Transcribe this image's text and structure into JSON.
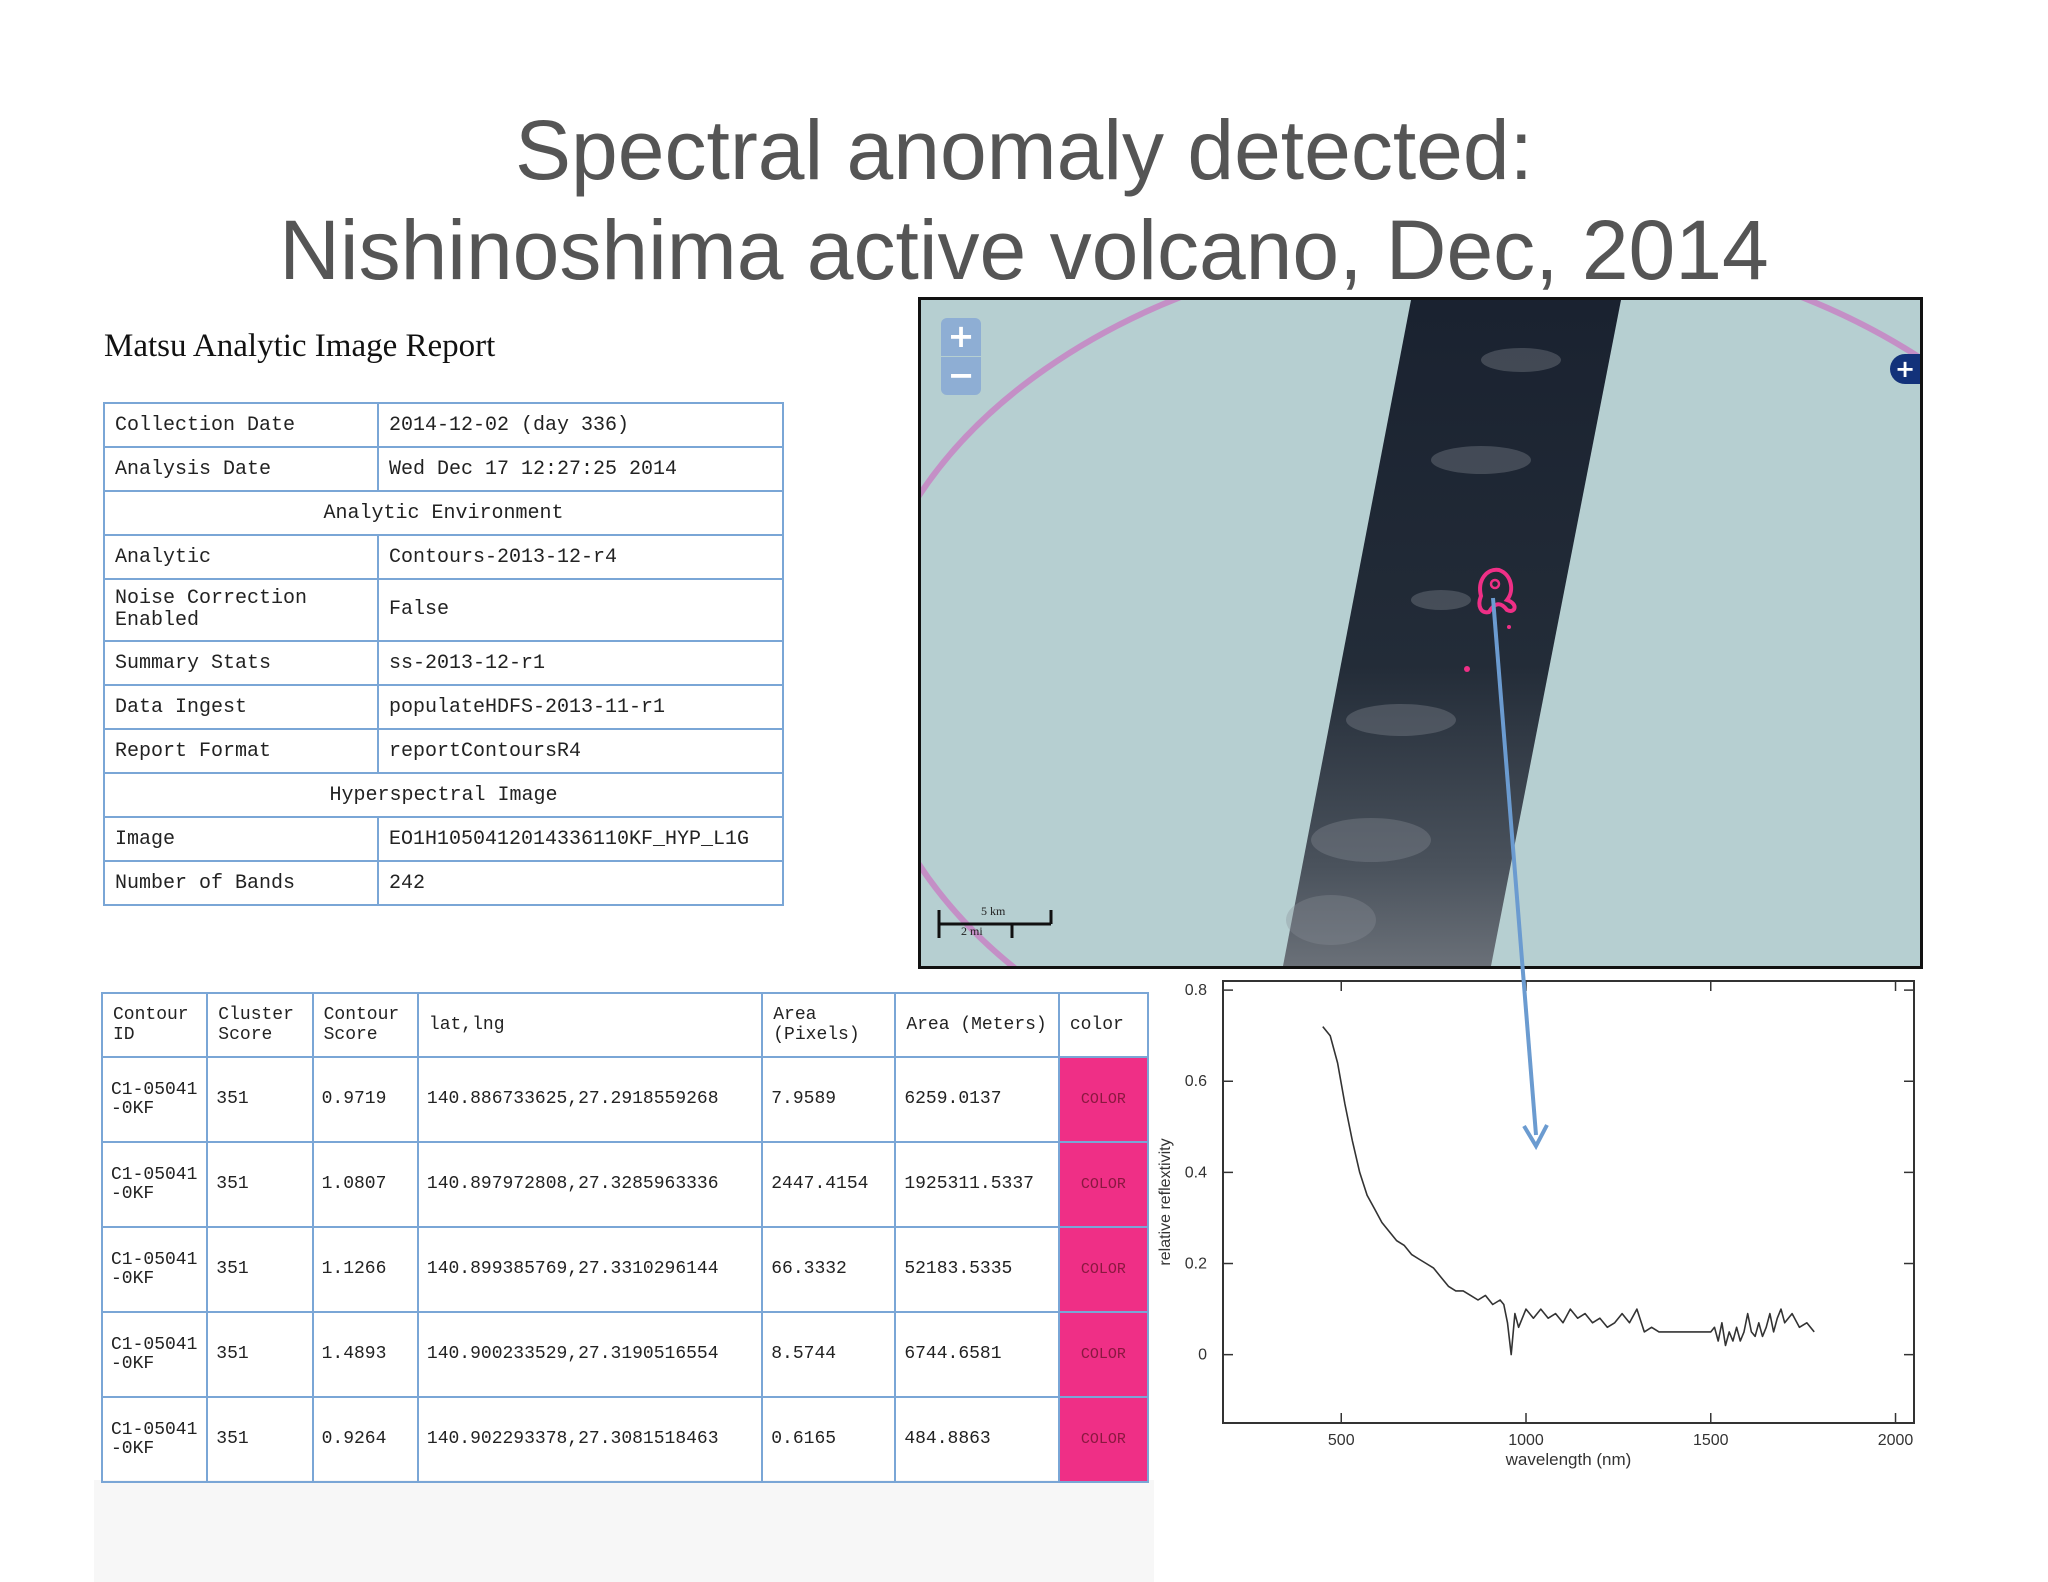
{
  "slide": {
    "title_line1": "Spectral anomaly detected:",
    "title_line2": "Nishinoshima active volcano, Dec, 2014"
  },
  "report": {
    "heading": "Matsu Analytic Image Report",
    "rows": {
      "collection_date": {
        "key": "Collection Date",
        "value": "2014-12-02 (day 336)"
      },
      "analysis_date": {
        "key": "Analysis Date",
        "value": "Wed Dec 17 12:27:25 2014"
      },
      "analytic_environment": "Analytic Environment",
      "analytic": {
        "key": "Analytic",
        "value": "Contours-2013-12-r4"
      },
      "noise_correction": {
        "key": "Noise Correction Enabled",
        "value": "False"
      },
      "summary_stats": {
        "key": "Summary Stats",
        "value": "ss-2013-12-r1"
      },
      "data_ingest": {
        "key": "Data Ingest",
        "value": "populateHDFS-2013-11-r1"
      },
      "report_format": {
        "key": "Report Format",
        "value": "reportContoursR4"
      },
      "hyperspectral_image": "Hyperspectral Image",
      "image": {
        "key": "Image",
        "value": "EO1H1050412014336110KF_HYP_L1G"
      },
      "number_of_bands": {
        "key": "Number of Bands",
        "value": "242"
      }
    }
  },
  "contours": {
    "headers": [
      "Contour ID",
      "Cluster Score",
      "Contour Score",
      "lat,lng",
      "Area (Pixels)",
      "Area (Meters)",
      "color"
    ],
    "rows": [
      {
        "id": "C1-05041-0KF",
        "cluster": "351",
        "contour": "0.9719",
        "latlng": "140.886733625,27.2918559268",
        "area_px": "7.9589",
        "area_m": "6259.0137",
        "color": "COLOR"
      },
      {
        "id": "C1-05041-0KF",
        "cluster": "351",
        "contour": "1.0807",
        "latlng": "140.897972808,27.3285963336",
        "area_px": "2447.4154",
        "area_m": "1925311.5337",
        "color": "COLOR"
      },
      {
        "id": "C1-05041-0KF",
        "cluster": "351",
        "contour": "1.1266",
        "latlng": "140.899385769,27.3310296144",
        "area_px": "66.3332",
        "area_m": "52183.5335",
        "color": "COLOR"
      },
      {
        "id": "C1-05041-0KF",
        "cluster": "351",
        "contour": "1.4893",
        "latlng": "140.900233529,27.3190516554",
        "area_px": "8.5744",
        "area_m": "6744.6581",
        "color": "COLOR"
      },
      {
        "id": "C1-05041-0KF",
        "cluster": "351",
        "contour": "0.9264",
        "latlng": "140.902293378,27.3081518463",
        "area_px": "0.6165",
        "area_m": "484.8863",
        "color": "COLOR"
      }
    ]
  },
  "map": {
    "zoom_in": "+",
    "zoom_out": "−",
    "layer_toggle": "+",
    "scale_km": "5 km",
    "scale_mi": "2 mi"
  },
  "colors": {
    "contour": "#ef2f86",
    "table_border": "#7aa6d6",
    "map_background": "#b6cfd1",
    "arrow": "#6b9bd0"
  },
  "chart_data": {
    "type": "line",
    "xlabel": "wavelength (nm)",
    "ylabel": "relative reflextivity",
    "xlim": [
      180,
      2050
    ],
    "ylim": [
      -0.15,
      0.82
    ],
    "xticks": [
      500,
      1000,
      1500,
      2000
    ],
    "yticks": [
      0,
      0.2,
      0.4,
      0.6,
      0.8
    ],
    "ytick_labels": [
      "0",
      "0.2",
      "0.4",
      "0.6",
      "0.8"
    ],
    "series": [
      {
        "x": [
          450,
          470,
          490,
          510,
          530,
          550,
          570,
          590,
          610,
          630,
          650,
          670,
          690,
          710,
          730,
          750,
          770,
          790,
          810,
          830,
          850,
          870,
          890,
          910,
          930,
          940,
          950,
          960,
          970,
          980,
          1000,
          1020,
          1040,
          1060,
          1080,
          1100,
          1120,
          1140,
          1160,
          1180,
          1200,
          1220,
          1240,
          1260,
          1280,
          1300,
          1320,
          1340,
          1360,
          1380,
          1400,
          1420,
          1440,
          1460,
          1480,
          1500,
          1510,
          1520,
          1530,
          1540,
          1550,
          1560,
          1570,
          1580,
          1590,
          1600,
          1610,
          1620,
          1630,
          1640,
          1650,
          1660,
          1670,
          1680,
          1690,
          1700,
          1720,
          1740,
          1760,
          1780
        ],
        "y": [
          0.72,
          0.7,
          0.64,
          0.55,
          0.47,
          0.4,
          0.35,
          0.32,
          0.29,
          0.27,
          0.25,
          0.24,
          0.22,
          0.21,
          0.2,
          0.19,
          0.17,
          0.15,
          0.14,
          0.14,
          0.13,
          0.12,
          0.13,
          0.11,
          0.12,
          0.11,
          0.07,
          0.0,
          0.09,
          0.06,
          0.1,
          0.08,
          0.1,
          0.08,
          0.09,
          0.07,
          0.1,
          0.08,
          0.09,
          0.07,
          0.08,
          0.06,
          0.07,
          0.09,
          0.07,
          0.1,
          0.05,
          0.06,
          0.05,
          0.05,
          0.05,
          0.05,
          0.05,
          0.05,
          0.05,
          0.05,
          0.06,
          0.03,
          0.07,
          0.02,
          0.05,
          0.03,
          0.06,
          0.03,
          0.05,
          0.09,
          0.05,
          0.04,
          0.07,
          0.04,
          0.06,
          0.09,
          0.05,
          0.08,
          0.1,
          0.07,
          0.09,
          0.06,
          0.07,
          0.05
        ]
      }
    ]
  }
}
